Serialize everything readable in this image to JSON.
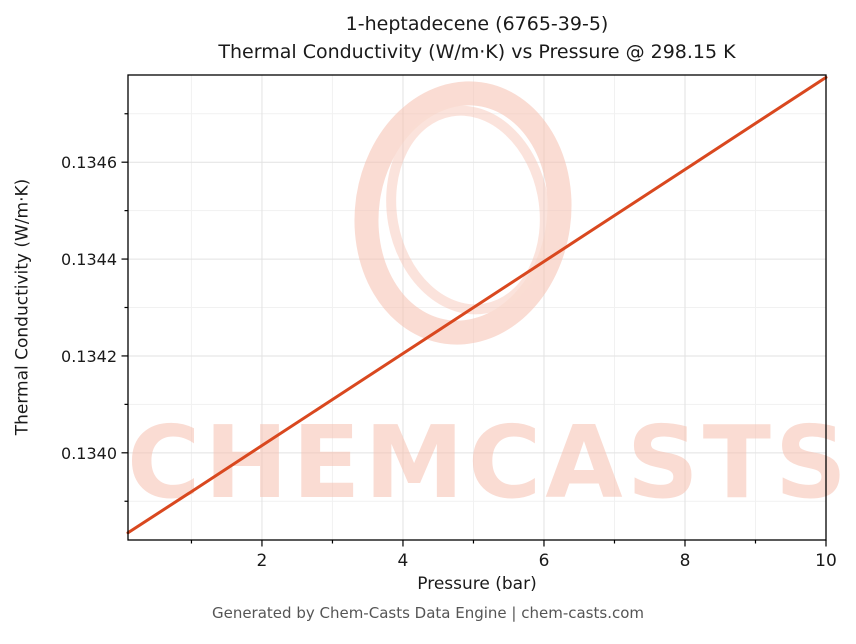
{
  "chart_data": {
    "type": "line",
    "title": "1-heptadecene (6765-39-5)",
    "subtitle": "Thermal Conductivity (W/m·K) vs Pressure @ 298.15 K",
    "xlabel": "Pressure (bar)",
    "ylabel": "Thermal Conductivity (W/m·K)",
    "xlim": [
      0.1,
      10
    ],
    "ylim": [
      0.13382,
      0.13478
    ],
    "x_ticks": [
      2,
      4,
      6,
      8,
      10
    ],
    "x_tick_labels": [
      "2",
      "4",
      "6",
      "8",
      "10"
    ],
    "x_minor_ticks": [
      1,
      3,
      5,
      7,
      9
    ],
    "y_ticks": [
      0.134,
      0.1342,
      0.1344,
      0.1346
    ],
    "y_tick_labels": [
      "0.1340",
      "0.1342",
      "0.1344",
      "0.1346"
    ],
    "y_minor_ticks": [
      0.1339,
      0.1341,
      0.1343,
      0.1345,
      0.1347
    ],
    "grid": true,
    "legend": "none",
    "line_color": "#d9481f",
    "major_grid_color": "#e2e2e2",
    "minor_grid_color": "#f1f1f1",
    "series": [
      {
        "name": "Thermal conductivity vs pressure @ 298.15 K",
        "x": [
          0.1,
          1,
          2,
          3,
          4,
          5,
          6,
          7,
          8,
          9,
          10
        ],
        "y": [
          0.133835,
          0.13392,
          0.134015,
          0.13411,
          0.134205,
          0.1343,
          0.134395,
          0.13449,
          0.134585,
          0.13468,
          0.134775
        ]
      }
    ]
  },
  "watermark": {
    "text": "CHEMCASTS",
    "color": "#f6c0b0"
  },
  "footer": {
    "text": "Generated by Chem-Casts Data Engine | chem-casts.com"
  }
}
